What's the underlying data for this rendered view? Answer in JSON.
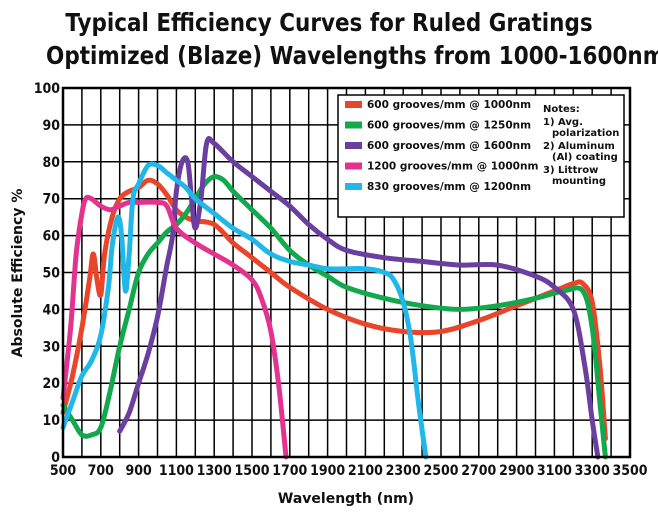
{
  "chart_data": {
    "type": "line",
    "title": "Typical Efficiency Curves  for Ruled Gratings",
    "subtitle": "Optimized (Blaze) Wavelengths from 1000-1600nm",
    "xlabel": "Wavelength (nm)",
    "ylabel": "Absolute Efficiency %",
    "xlim": [
      500,
      3500
    ],
    "ylim": [
      0,
      100
    ],
    "xticks": [
      500,
      700,
      900,
      1100,
      1300,
      1500,
      1700,
      1900,
      2100,
      2300,
      2500,
      2700,
      2900,
      3100,
      3300,
      3500
    ],
    "yticks": [
      0,
      10,
      20,
      30,
      40,
      50,
      60,
      70,
      80,
      90,
      100
    ],
    "grid": true,
    "legend_position": "top-right",
    "notes": [
      "Notes:",
      "1) Avg.",
      "polarization",
      "2) Aluminum",
      "(Al) coating",
      "3) Littrow",
      "mounting"
    ],
    "series": [
      {
        "name": "600 grooves/mm  @ 1000nm",
        "color": "#e8452a",
        "points": [
          [
            500,
            12
          ],
          [
            550,
            22
          ],
          [
            600,
            35
          ],
          [
            640,
            48
          ],
          [
            660,
            55
          ],
          [
            680,
            48
          ],
          [
            700,
            44
          ],
          [
            720,
            55
          ],
          [
            760,
            65
          ],
          [
            800,
            70
          ],
          [
            850,
            72
          ],
          [
            900,
            73
          ],
          [
            950,
            75
          ],
          [
            1000,
            74
          ],
          [
            1050,
            71
          ],
          [
            1100,
            67
          ],
          [
            1150,
            65
          ],
          [
            1200,
            64
          ],
          [
            1300,
            63
          ],
          [
            1400,
            58
          ],
          [
            1500,
            54
          ],
          [
            1600,
            50
          ],
          [
            1700,
            46
          ],
          [
            1900,
            40
          ],
          [
            2100,
            36
          ],
          [
            2300,
            34
          ],
          [
            2500,
            34
          ],
          [
            2700,
            37
          ],
          [
            2900,
            41
          ],
          [
            3100,
            45
          ],
          [
            3200,
            47
          ],
          [
            3250,
            47
          ],
          [
            3300,
            42
          ],
          [
            3340,
            25
          ],
          [
            3370,
            5
          ]
        ]
      },
      {
        "name": "600 grooves/mm  @ 1250nm",
        "color": "#12a84c",
        "points": [
          [
            500,
            14
          ],
          [
            550,
            10
          ],
          [
            600,
            6
          ],
          [
            650,
            6
          ],
          [
            700,
            8
          ],
          [
            750,
            18
          ],
          [
            800,
            30
          ],
          [
            850,
            40
          ],
          [
            900,
            50
          ],
          [
            950,
            55
          ],
          [
            1000,
            58
          ],
          [
            1050,
            61
          ],
          [
            1100,
            63
          ],
          [
            1150,
            66
          ],
          [
            1200,
            70
          ],
          [
            1250,
            74
          ],
          [
            1300,
            76
          ],
          [
            1350,
            75
          ],
          [
            1400,
            72
          ],
          [
            1500,
            67
          ],
          [
            1600,
            62
          ],
          [
            1700,
            56
          ],
          [
            1800,
            52
          ],
          [
            1900,
            49
          ],
          [
            2000,
            46
          ],
          [
            2200,
            43
          ],
          [
            2400,
            41
          ],
          [
            2600,
            40
          ],
          [
            2800,
            41
          ],
          [
            3000,
            43
          ],
          [
            3150,
            45
          ],
          [
            3250,
            45
          ],
          [
            3300,
            35
          ],
          [
            3340,
            15
          ],
          [
            3370,
            0
          ]
        ]
      },
      {
        "name": "600 grooves/mm  @ 1600nm",
        "color": "#6b3fa0",
        "points": [
          [
            800,
            7
          ],
          [
            850,
            12
          ],
          [
            900,
            20
          ],
          [
            950,
            28
          ],
          [
            1000,
            38
          ],
          [
            1050,
            52
          ],
          [
            1080,
            60
          ],
          [
            1100,
            72
          ],
          [
            1130,
            80
          ],
          [
            1160,
            80
          ],
          [
            1180,
            70
          ],
          [
            1200,
            62
          ],
          [
            1230,
            70
          ],
          [
            1260,
            85
          ],
          [
            1300,
            85
          ],
          [
            1400,
            80
          ],
          [
            1500,
            76
          ],
          [
            1600,
            72
          ],
          [
            1700,
            68
          ],
          [
            1800,
            63
          ],
          [
            1900,
            59
          ],
          [
            2000,
            56
          ],
          [
            2200,
            54
          ],
          [
            2400,
            53
          ],
          [
            2600,
            52
          ],
          [
            2800,
            52
          ],
          [
            3000,
            49
          ],
          [
            3100,
            46
          ],
          [
            3200,
            40
          ],
          [
            3260,
            25
          ],
          [
            3300,
            10
          ],
          [
            3330,
            0
          ]
        ]
      },
      {
        "name": "1200 grooves/mm  @ 1000nm",
        "color": "#e2338f",
        "points": [
          [
            500,
            16
          ],
          [
            540,
            35
          ],
          [
            570,
            55
          ],
          [
            600,
            66
          ],
          [
            620,
            70
          ],
          [
            650,
            70
          ],
          [
            700,
            68
          ],
          [
            750,
            67
          ],
          [
            800,
            68
          ],
          [
            850,
            69
          ],
          [
            900,
            69
          ],
          [
            1000,
            69
          ],
          [
            1050,
            68
          ],
          [
            1100,
            62
          ],
          [
            1200,
            58
          ],
          [
            1300,
            55
          ],
          [
            1400,
            52
          ],
          [
            1500,
            48
          ],
          [
            1550,
            43
          ],
          [
            1600,
            34
          ],
          [
            1640,
            20
          ],
          [
            1680,
            0
          ]
        ]
      },
      {
        "name": "830 grooves/mm  @ 1200nm",
        "color": "#21b7e8",
        "points": [
          [
            500,
            8
          ],
          [
            550,
            15
          ],
          [
            600,
            22
          ],
          [
            650,
            26
          ],
          [
            700,
            33
          ],
          [
            740,
            46
          ],
          [
            760,
            57
          ],
          [
            790,
            65
          ],
          [
            810,
            60
          ],
          [
            830,
            45
          ],
          [
            850,
            55
          ],
          [
            870,
            70
          ],
          [
            900,
            74
          ],
          [
            950,
            79
          ],
          [
            1000,
            79
          ],
          [
            1050,
            77
          ],
          [
            1100,
            75
          ],
          [
            1150,
            73
          ],
          [
            1200,
            70
          ],
          [
            1300,
            66
          ],
          [
            1400,
            62
          ],
          [
            1500,
            59
          ],
          [
            1600,
            55
          ],
          [
            1700,
            53
          ],
          [
            1800,
            52
          ],
          [
            1900,
            51
          ],
          [
            2000,
            51
          ],
          [
            2100,
            51
          ],
          [
            2200,
            50
          ],
          [
            2250,
            48
          ],
          [
            2300,
            42
          ],
          [
            2340,
            32
          ],
          [
            2380,
            15
          ],
          [
            2420,
            0
          ]
        ]
      }
    ]
  }
}
